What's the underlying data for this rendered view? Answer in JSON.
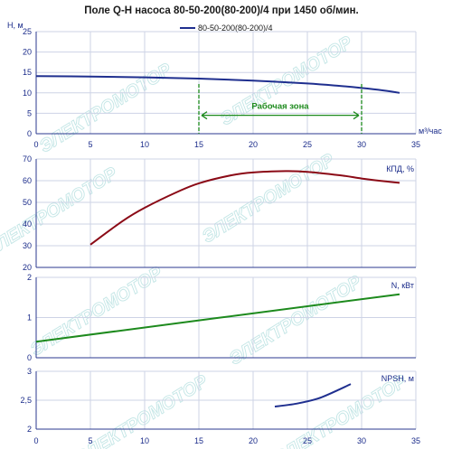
{
  "title": "Поле Q-H насоса 80-50-200(80-200)/4 при 1450 об/мин.",
  "legend": "80-50-200(80-200)/4",
  "watermark": "ЭЛЕКТРОМОТОР",
  "colors": {
    "head": "#1f2f8f",
    "efficiency": "#8b0a16",
    "power": "#1d8a1d",
    "npsh": "#1f2f8f",
    "zone": "#1d8a1d",
    "grid": "#cdd3e6",
    "axis": "#2b3a8f"
  },
  "chart_data": [
    {
      "type": "line",
      "ylabel": "H, м",
      "xlabel": "м³/час",
      "xlim": [
        0,
        35
      ],
      "ylim": [
        0,
        25
      ],
      "x_ticks": [
        "0",
        "5",
        "10",
        "15",
        "20",
        "25",
        "30",
        "35"
      ],
      "y_ticks": [
        "0",
        "5",
        "10",
        "15",
        "20",
        "25"
      ],
      "grid": true,
      "legend_position": "top",
      "series": [
        {
          "name": "80-50-200(80-200)/4",
          "x": [
            0,
            5,
            10,
            15,
            20,
            25,
            28,
            30,
            32,
            33.5
          ],
          "y": [
            14.1,
            14.0,
            13.8,
            13.5,
            13.0,
            12.3,
            11.7,
            11.2,
            10.6,
            10.0
          ]
        }
      ],
      "annotation": {
        "label": "Рабочая зона",
        "x_range": [
          15,
          30
        ],
        "y": 4.5
      }
    },
    {
      "type": "line",
      "ylabel": "КПД, %",
      "xlim": [
        0,
        35
      ],
      "ylim": [
        20,
        70
      ],
      "y_ticks": [
        "20",
        "30",
        "40",
        "50",
        "60",
        "70"
      ],
      "grid": true,
      "series": [
        {
          "x": [
            5,
            8,
            10,
            13,
            15,
            18,
            20,
            23,
            25,
            28,
            30,
            32,
            33.5
          ],
          "y": [
            30.5,
            41.5,
            47.5,
            54.8,
            58.8,
            62.5,
            63.8,
            64.4,
            64.1,
            62.5,
            61,
            59.8,
            59
          ]
        }
      ]
    },
    {
      "type": "line",
      "ylabel": "N, кВт",
      "xlim": [
        0,
        35
      ],
      "ylim": [
        0,
        2
      ],
      "y_ticks": [
        "0",
        "1",
        "2"
      ],
      "grid": true,
      "series": [
        {
          "x": [
            0,
            33.5
          ],
          "y": [
            0.4,
            1.58
          ]
        }
      ]
    },
    {
      "type": "line",
      "ylabel": "NPSH, м",
      "xlabel": "",
      "xlim": [
        0,
        35
      ],
      "ylim": [
        2,
        3
      ],
      "x_ticks": [
        "0",
        "5",
        "10",
        "15",
        "20",
        "25",
        "30",
        "35"
      ],
      "y_ticks": [
        "2",
        "2,5",
        "3"
      ],
      "grid": true,
      "series": [
        {
          "x": [
            22,
            24,
            26,
            28,
            29
          ],
          "y": [
            2.39,
            2.44,
            2.53,
            2.69,
            2.78
          ]
        }
      ]
    }
  ]
}
